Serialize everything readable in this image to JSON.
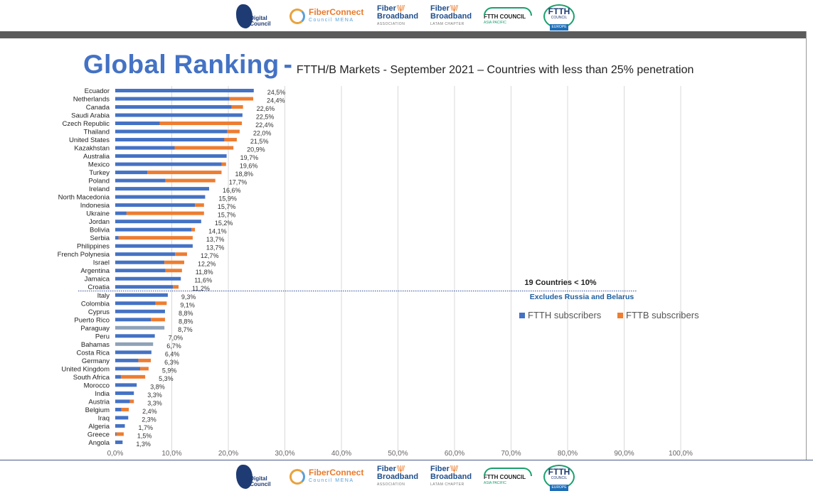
{
  "logos": {
    "digital_council": "Digital Council",
    "fiberconnect_line1": "FiberConnect",
    "fiberconnect_line2": "Council MENA",
    "fiber_broadband_assoc_line1": "Fiber",
    "fiber_broadband_assoc_line2": "Broadband",
    "fiber_broadband_assoc_line3": "ASSOCIATION",
    "fiber_broadband_latam_line1": "Fiber",
    "fiber_broadband_latam_line2": "Broadband",
    "fiber_broadband_latam_line3": "LATAM CHAPTER",
    "ftth_apac_line1": "FTTH COUNCIL",
    "ftth_apac_line2": "ASIA PACIFIC",
    "ftth_europe_line1": "FTTH",
    "ftth_europe_line2": "COUNCIL",
    "ftth_europe_line3": "EUROPE"
  },
  "title": {
    "main": "Global Ranking",
    "dash": "-",
    "subtitle": "FTTH/B Markets - September 2021 – Countries with less than 25% penetration"
  },
  "annotation": {
    "line1": "19 Countries < 10%",
    "line2": "Excludes Russia and Belarus"
  },
  "colors": {
    "ftth": "#4472c4",
    "fttb": "#ed7d31",
    "total_only": "#8ea2b8",
    "grid": "#d9d9d9",
    "threshold_line": "#2f4b9c"
  },
  "chart_data": {
    "type": "bar",
    "orientation": "horizontal",
    "stacked": true,
    "xlim": [
      0,
      100
    ],
    "x_ticks": [
      "0,0%",
      "10,0%",
      "20,0%",
      "30,0%",
      "40,0%",
      "50,0%",
      "60,0%",
      "70,0%",
      "80,0%",
      "90,0%",
      "100,0%"
    ],
    "grid": true,
    "legend_position": "right",
    "threshold_after": "Croatia",
    "series": [
      {
        "name": "FTTH subscribers",
        "color": "#4472c4"
      },
      {
        "name": "FTTB subscribers",
        "color": "#ed7d31"
      }
    ],
    "rows": [
      {
        "country": "Ecuador",
        "ftth": 24.5,
        "fttb": 0.0,
        "label": "24,5%"
      },
      {
        "country": "Netherlands",
        "ftth": 20.2,
        "fttb": 4.2,
        "label": "24,4%"
      },
      {
        "country": "Canada",
        "ftth": 20.6,
        "fttb": 2.0,
        "label": "22,6%"
      },
      {
        "country": "Saudi Arabia",
        "ftth": 22.5,
        "fttb": 0.0,
        "label": "22,5%"
      },
      {
        "country": "Czech Republic",
        "ftth": 7.9,
        "fttb": 14.5,
        "label": "22,4%"
      },
      {
        "country": "Thailand",
        "ftth": 19.8,
        "fttb": 2.2,
        "label": "22,0%"
      },
      {
        "country": "United States",
        "ftth": 19.3,
        "fttb": 2.2,
        "label": "21,5%"
      },
      {
        "country": "Kazakhstan",
        "ftth": 10.5,
        "fttb": 10.4,
        "label": "20,9%"
      },
      {
        "country": "Australia",
        "ftth": 19.7,
        "fttb": 0.0,
        "label": "19,7%"
      },
      {
        "country": "Mexico",
        "ftth": 18.8,
        "fttb": 0.8,
        "label": "19,6%"
      },
      {
        "country": "Turkey",
        "ftth": 5.7,
        "fttb": 13.1,
        "label": "18,8%"
      },
      {
        "country": "Poland",
        "ftth": 8.9,
        "fttb": 8.8,
        "label": "17,7%"
      },
      {
        "country": "Ireland",
        "ftth": 16.6,
        "fttb": 0.0,
        "label": "16,6%"
      },
      {
        "country": "North Macedonia",
        "ftth": 15.9,
        "fttb": 0.0,
        "label": "15,9%"
      },
      {
        "country": "Indonesia",
        "ftth": 14.1,
        "fttb": 1.6,
        "label": "15,7%"
      },
      {
        "country": "Ukraine",
        "ftth": 2.0,
        "fttb": 13.7,
        "label": "15,7%"
      },
      {
        "country": "Jordan",
        "ftth": 15.2,
        "fttb": 0.0,
        "label": "15,2%"
      },
      {
        "country": "Bolivia",
        "ftth": 13.5,
        "fttb": 0.6,
        "label": "14,1%"
      },
      {
        "country": "Serbia",
        "ftth": 0.6,
        "fttb": 13.1,
        "label": "13,7%"
      },
      {
        "country": "Philippines",
        "ftth": 13.7,
        "fttb": 0.0,
        "label": "13,7%"
      },
      {
        "country": "French Polynesia",
        "ftth": 10.6,
        "fttb": 2.1,
        "label": "12,7%"
      },
      {
        "country": "Israel",
        "ftth": 8.7,
        "fttb": 3.5,
        "label": "12,2%"
      },
      {
        "country": "Argentina",
        "ftth": 8.9,
        "fttb": 2.9,
        "label": "11,8%"
      },
      {
        "country": "Jamaica",
        "ftth": 11.6,
        "fttb": 0.0,
        "label": "11,6%"
      },
      {
        "country": "Croatia",
        "ftth": 10.2,
        "fttb": 1.0,
        "label": "11,2%"
      },
      {
        "country": "Italy",
        "ftth": 9.3,
        "fttb": 0.0,
        "label": "9,3%"
      },
      {
        "country": "Colombia",
        "ftth": 7.1,
        "fttb": 2.0,
        "label": "9,1%"
      },
      {
        "country": "Cyprus",
        "ftth": 8.8,
        "fttb": 0.0,
        "label": "8,8%"
      },
      {
        "country": "Puerto Rico",
        "ftth": 6.3,
        "fttb": 2.5,
        "label": "8,8%"
      },
      {
        "country": "Paraguay",
        "ftth": 8.7,
        "fttb": 0.0,
        "label": "8,7%",
        "total_only": true
      },
      {
        "country": "Peru",
        "ftth": 7.0,
        "fttb": 0.0,
        "label": "7,0%"
      },
      {
        "country": "Bahamas",
        "ftth": 6.7,
        "fttb": 0.0,
        "label": "6,7%",
        "total_only": true
      },
      {
        "country": "Costa Rica",
        "ftth": 6.4,
        "fttb": 0.0,
        "label": "6,4%"
      },
      {
        "country": "Germany",
        "ftth": 4.1,
        "fttb": 2.2,
        "label": "6,3%"
      },
      {
        "country": "United Kingdom",
        "ftth": 4.4,
        "fttb": 1.5,
        "label": "5,9%"
      },
      {
        "country": "South Africa",
        "ftth": 1.0,
        "fttb": 4.3,
        "label": "5,3%"
      },
      {
        "country": "Morocco",
        "ftth": 3.8,
        "fttb": 0.0,
        "label": "3,8%"
      },
      {
        "country": "India",
        "ftth": 3.3,
        "fttb": 0.0,
        "label": "3,3%"
      },
      {
        "country": "Austria",
        "ftth": 2.6,
        "fttb": 0.7,
        "label": "3,3%"
      },
      {
        "country": "Belgium",
        "ftth": 1.1,
        "fttb": 1.3,
        "label": "2,4%"
      },
      {
        "country": "Iraq",
        "ftth": 2.3,
        "fttb": 0.0,
        "label": "2,3%"
      },
      {
        "country": "Algeria",
        "ftth": 1.7,
        "fttb": 0.0,
        "label": "1,7%"
      },
      {
        "country": "Greece",
        "ftth": 0.2,
        "fttb": 1.3,
        "label": "1,5%"
      },
      {
        "country": "Angola",
        "ftth": 1.3,
        "fttb": 0.0,
        "label": "1,3%"
      }
    ]
  }
}
